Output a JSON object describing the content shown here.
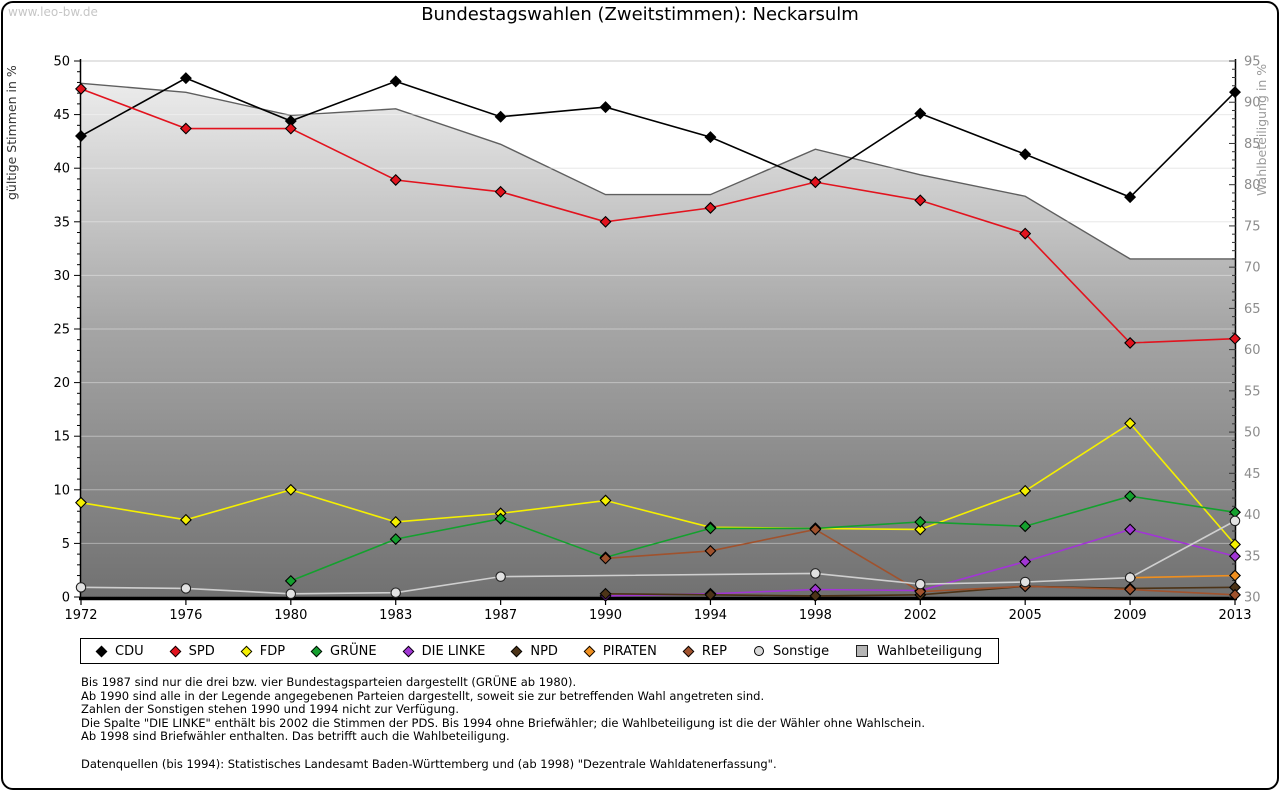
{
  "watermark": "www.leo-bw.de",
  "title": "Bundestagswahlen (Zweitstimmen): Neckarsulm",
  "chart_data": {
    "type": "line",
    "title": "Bundestagswahlen (Zweitstimmen): Neckarsulm",
    "x_categories": [
      "1972",
      "1976",
      "1980",
      "1983",
      "1987",
      "1990",
      "1994",
      "1998",
      "2002",
      "2005",
      "2009",
      "2013"
    ],
    "y_left": {
      "label": "gültige Stimmen in %",
      "min": 0,
      "max": 50,
      "tick_step": 5,
      "minor_step": 1
    },
    "y_right": {
      "label": "Wahlbeteiligung in %",
      "min": 30,
      "max": 95,
      "tick_step": 5,
      "minor_step": 1
    },
    "grid": "horizontal every 5 (left axis)",
    "legend_position": "bottom",
    "series": [
      {
        "name": "Wahlbeteiligung",
        "axis": "right",
        "type": "area",
        "color": "#5f5f5f",
        "fill_top": "#f2f2f2",
        "fill_bottom": "#717171",
        "marker": "square",
        "values": [
          92.3,
          91.2,
          88.4,
          89.2,
          84.9,
          78.8,
          78.8,
          84.3,
          81.2,
          78.6,
          71.0,
          71.0
        ]
      },
      {
        "name": "CDU",
        "axis": "left",
        "type": "line",
        "color": "#000000",
        "marker": "diamond",
        "values": [
          43.0,
          48.4,
          44.4,
          48.1,
          44.8,
          45.7,
          42.9,
          38.7,
          45.1,
          41.3,
          37.3,
          47.1
        ]
      },
      {
        "name": "SPD",
        "axis": "left",
        "type": "line",
        "color": "#e2131e",
        "marker": "diamond",
        "values": [
          47.4,
          43.7,
          43.7,
          38.9,
          37.8,
          35.0,
          36.3,
          38.7,
          37.0,
          33.9,
          23.7,
          24.1
        ]
      },
      {
        "name": "FDP",
        "axis": "left",
        "type": "line",
        "color": "#f5f000",
        "marker": "diamond",
        "values": [
          8.8,
          7.2,
          10.0,
          7.0,
          7.8,
          9.0,
          6.5,
          6.4,
          6.3,
          9.9,
          16.2,
          4.9
        ]
      },
      {
        "name": "GRÜNE",
        "axis": "left",
        "type": "line",
        "color": "#14a02e",
        "marker": "diamond",
        "values": [
          null,
          null,
          1.5,
          5.4,
          7.3,
          3.7,
          6.4,
          6.4,
          7.0,
          6.6,
          9.4,
          7.9
        ]
      },
      {
        "name": "DIE LINKE",
        "axis": "left",
        "type": "line",
        "color": "#a136d4",
        "marker": "diamond",
        "values": [
          null,
          null,
          null,
          null,
          null,
          0.1,
          0.3,
          0.7,
          0.6,
          3.3,
          6.3,
          3.8
        ]
      },
      {
        "name": "NPD",
        "axis": "left",
        "type": "line",
        "color": "#4c3317",
        "marker": "diamond",
        "values": [
          null,
          null,
          null,
          null,
          null,
          0.3,
          0.2,
          0.1,
          0.2,
          1.0,
          0.8,
          0.9
        ]
      },
      {
        "name": "PIRATEN",
        "axis": "left",
        "type": "line",
        "color": "#ef8f1f",
        "marker": "diamond",
        "values": [
          null,
          null,
          null,
          null,
          null,
          null,
          null,
          null,
          null,
          null,
          1.8,
          2.0
        ]
      },
      {
        "name": "REP",
        "axis": "left",
        "type": "line",
        "color": "#a0522d",
        "marker": "diamond",
        "values": [
          null,
          null,
          null,
          null,
          null,
          3.6,
          4.3,
          6.3,
          0.5,
          1.0,
          0.7,
          0.2
        ]
      },
      {
        "name": "Sonstige",
        "axis": "left",
        "type": "line",
        "color": "#cfcfcf",
        "marker": "circle",
        "values": [
          0.9,
          0.8,
          0.3,
          0.4,
          1.9,
          null,
          null,
          2.2,
          1.2,
          1.4,
          1.8,
          7.1
        ]
      }
    ]
  },
  "footnotes": [
    "Bis 1987 sind nur die drei bzw. vier Bundestagsparteien dargestellt (GRÜNE ab 1980).",
    "Ab 1990 sind alle in der Legende angegebenen Parteien dargestellt, soweit sie zur betreffenden Wahl angetreten sind.",
    "Zahlen der Sonstigen stehen 1990 und 1994 nicht zur Verfügung.",
    "Die Spalte \"DIE LINKE\" enthält bis 2002 die Stimmen der PDS. Bis 1994 ohne Briefwähler; die Wahlbeteiligung ist die der Wähler ohne Wahlschein.",
    "Ab 1998 sind Briefwähler enthalten. Das betrifft auch die Wahlbeteiligung.",
    "",
    "Datenquellen (bis 1994): Statistisches Landesamt Baden-Württemberg und (ab 1998) \"Dezentrale Wahldatenerfassung\"."
  ]
}
